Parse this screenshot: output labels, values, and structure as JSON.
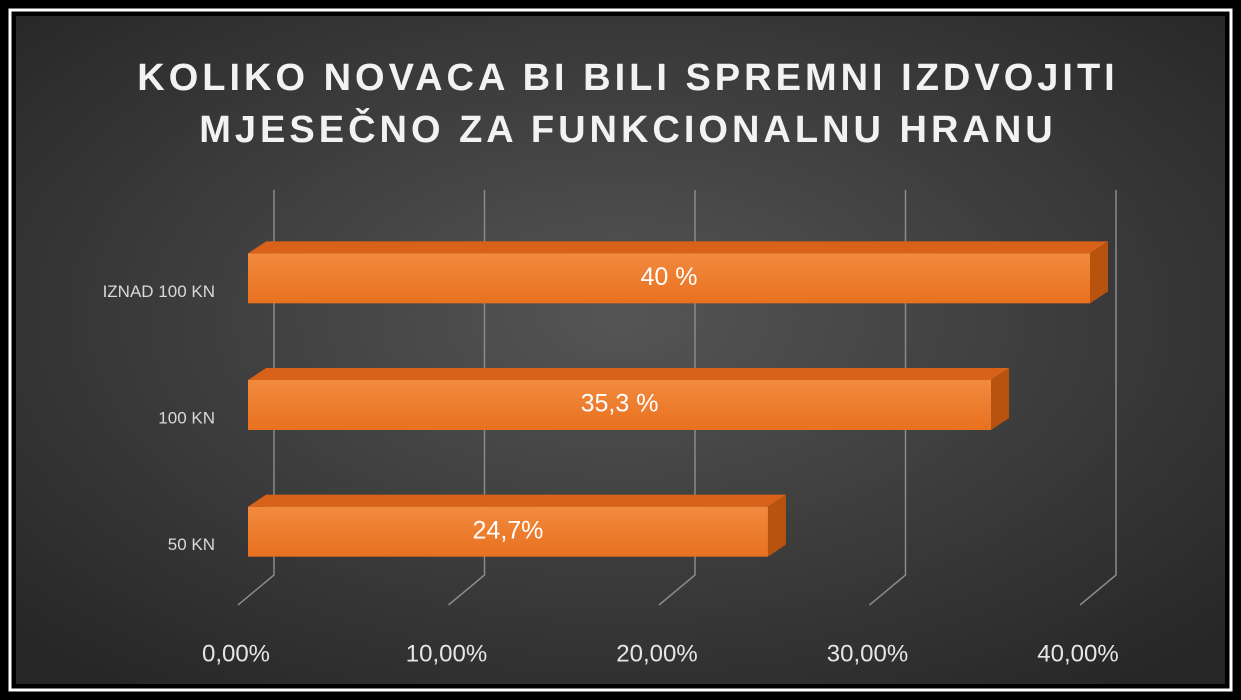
{
  "chart_data": {
    "type": "bar",
    "orientation": "horizontal",
    "title": [
      "KOLIKO NOVACA BI BILI SPREMNI IZDVOJITI",
      "MJESEČNO ZA FUNKCIONALNU HRANU"
    ],
    "categories": [
      "50 KN",
      "100 KN",
      "IZNAD 100 KN"
    ],
    "values": [
      24.7,
      35.3,
      40
    ],
    "value_labels": [
      "24,7%",
      "35,3 %",
      "40 %"
    ],
    "color": "#ed7d31",
    "xlim": [
      0,
      40
    ],
    "xticks": [
      {
        "value": 0,
        "label": "0,00%"
      },
      {
        "value": 10,
        "label": "10,00%"
      },
      {
        "value": 20,
        "label": "20,00%"
      },
      {
        "value": 30,
        "label": "30,00%"
      },
      {
        "value": 40,
        "label": "40,00%"
      }
    ],
    "grid": true
  }
}
